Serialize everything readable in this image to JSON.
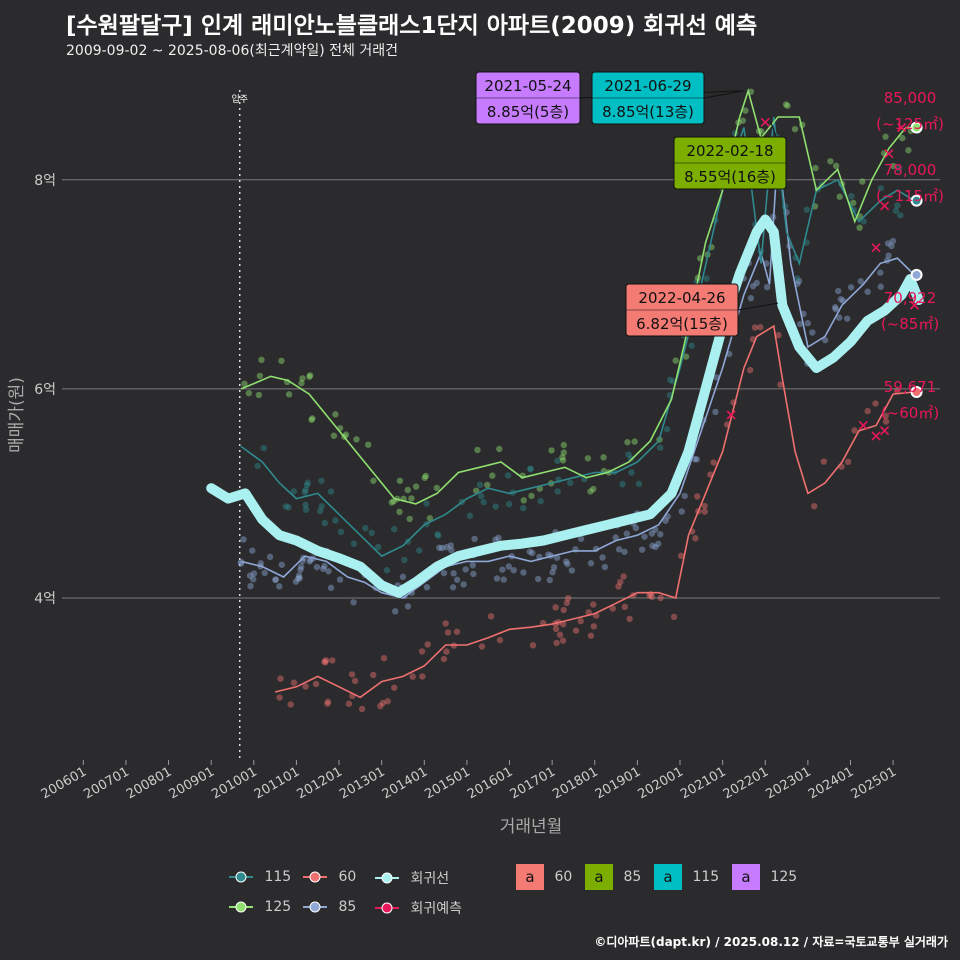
{
  "title": "[수원팔달구] 인계 래미안노블클래스1단지 아파트(2009) 회귀선 예측",
  "subtitle": "2009-09-02 ~ 2025-08-06(최근계약일) 전체 거래건",
  "footer": "©디아파트(dapt.kr) / 2025.08.12 / 자료=국토교통부 실거래가",
  "colors": {
    "bg": "#2b2b2d",
    "grid": "#7a7a7a",
    "s60": "#f07070",
    "s85": "#8fa8d8",
    "s115": "#2f8a8f",
    "s125": "#90e070",
    "reg": "#aaf0f0",
    "pred": "#e8185a",
    "lab60": "#f47a74",
    "lab85": "#7cae00",
    "lab115": "#00bfc4",
    "lab125": "#c77cff"
  },
  "chart_data": {
    "type": "line",
    "xlabel": "거래년월",
    "ylabel": "매매가(원)",
    "x_ticks": [
      "200601",
      "200701",
      "200801",
      "200901",
      "201001",
      "201101",
      "201201",
      "201301",
      "201401",
      "201501",
      "201601",
      "201701",
      "201801",
      "201901",
      "202001",
      "202101",
      "202201",
      "202301",
      "202401",
      "202501"
    ],
    "y_ticks": [
      {
        "v": 4,
        "label": "4억"
      },
      {
        "v": 6,
        "label": "6억"
      },
      {
        "v": 8,
        "label": "8억"
      }
    ],
    "xlim": [
      2005.5,
      2026.1
    ],
    "ylim": [
      2.45,
      9.05
    ],
    "move_in": {
      "x": 2009.67,
      "label": "입주"
    },
    "series": [
      {
        "name": "60",
        "key": "s60",
        "points": [
          [
            2010.5,
            3.1
          ],
          [
            2011.0,
            3.15
          ],
          [
            2011.5,
            3.25
          ],
          [
            2012.0,
            3.15
          ],
          [
            2012.5,
            3.05
          ],
          [
            2013.0,
            3.2
          ],
          [
            2013.5,
            3.25
          ],
          [
            2014.0,
            3.35
          ],
          [
            2014.5,
            3.55
          ],
          [
            2015.0,
            3.55
          ],
          [
            2015.5,
            3.62
          ],
          [
            2016.0,
            3.7
          ],
          [
            2016.5,
            3.72
          ],
          [
            2017.0,
            3.75
          ],
          [
            2017.5,
            3.8
          ],
          [
            2018.0,
            3.85
          ],
          [
            2018.5,
            3.95
          ],
          [
            2019.0,
            4.05
          ],
          [
            2019.5,
            4.05
          ],
          [
            2019.9,
            4.0
          ],
          [
            2020.2,
            4.6
          ],
          [
            2020.6,
            5.0
          ],
          [
            2021.0,
            5.4
          ],
          [
            2021.5,
            6.2
          ],
          [
            2021.8,
            6.5
          ],
          [
            2022.2,
            6.6
          ],
          [
            2022.4,
            6.1
          ],
          [
            2022.7,
            5.4
          ],
          [
            2023.0,
            5.0
          ],
          [
            2023.4,
            5.1
          ],
          [
            2023.8,
            5.3
          ],
          [
            2024.2,
            5.6
          ],
          [
            2024.6,
            5.65
          ],
          [
            2025.0,
            5.95
          ],
          [
            2025.5,
            5.97
          ]
        ]
      },
      {
        "name": "85",
        "key": "s85",
        "points": [
          [
            2009.7,
            4.35
          ],
          [
            2010.2,
            4.3
          ],
          [
            2010.7,
            4.2
          ],
          [
            2011.2,
            4.4
          ],
          [
            2011.7,
            4.35
          ],
          [
            2012.2,
            4.2
          ],
          [
            2012.6,
            4.15
          ],
          [
            2013.0,
            4.05
          ],
          [
            2013.5,
            4.0
          ],
          [
            2014.0,
            4.15
          ],
          [
            2014.5,
            4.3
          ],
          [
            2015.0,
            4.35
          ],
          [
            2015.5,
            4.35
          ],
          [
            2016.0,
            4.4
          ],
          [
            2016.5,
            4.35
          ],
          [
            2017.0,
            4.4
          ],
          [
            2017.5,
            4.45
          ],
          [
            2018.0,
            4.45
          ],
          [
            2018.5,
            4.55
          ],
          [
            2019.0,
            4.6
          ],
          [
            2019.5,
            4.7
          ],
          [
            2020.0,
            5.0
          ],
          [
            2020.5,
            5.6
          ],
          [
            2021.0,
            6.2
          ],
          [
            2021.5,
            6.9
          ],
          [
            2021.9,
            7.3
          ],
          [
            2022.1,
            7.0
          ],
          [
            2022.3,
            8.3
          ],
          [
            2022.6,
            7.2
          ],
          [
            2023.0,
            6.4
          ],
          [
            2023.4,
            6.5
          ],
          [
            2023.8,
            6.8
          ],
          [
            2024.3,
            7.0
          ],
          [
            2024.7,
            7.2
          ],
          [
            2025.1,
            7.25
          ],
          [
            2025.5,
            7.09
          ]
        ]
      },
      {
        "name": "115",
        "key": "s115",
        "points": [
          [
            2009.7,
            5.45
          ],
          [
            2010.2,
            5.3
          ],
          [
            2010.6,
            5.1
          ],
          [
            2011.0,
            4.95
          ],
          [
            2011.5,
            5.0
          ],
          [
            2012.0,
            4.8
          ],
          [
            2012.5,
            4.6
          ],
          [
            2013.0,
            4.4
          ],
          [
            2013.5,
            4.5
          ],
          [
            2014.0,
            4.7
          ],
          [
            2014.5,
            4.8
          ],
          [
            2015.0,
            4.95
          ],
          [
            2015.5,
            5.05
          ],
          [
            2016.0,
            5.0
          ],
          [
            2016.5,
            5.05
          ],
          [
            2017.0,
            5.1
          ],
          [
            2017.5,
            5.15
          ],
          [
            2018.0,
            5.2
          ],
          [
            2018.5,
            5.2
          ],
          [
            2019.0,
            5.3
          ],
          [
            2019.5,
            5.5
          ],
          [
            2020.0,
            6.2
          ],
          [
            2020.5,
            7.0
          ],
          [
            2021.0,
            7.9
          ],
          [
            2021.5,
            8.5
          ],
          [
            2021.9,
            7.2
          ],
          [
            2022.2,
            8.6
          ],
          [
            2022.5,
            7.5
          ],
          [
            2022.8,
            7.2
          ],
          [
            2023.2,
            7.9
          ],
          [
            2023.7,
            8.0
          ],
          [
            2024.2,
            7.6
          ],
          [
            2024.7,
            7.8
          ],
          [
            2025.1,
            7.9
          ],
          [
            2025.5,
            7.8
          ]
        ]
      },
      {
        "name": "125",
        "key": "s125",
        "points": [
          [
            2009.7,
            6.0
          ],
          [
            2010.0,
            6.05
          ],
          [
            2010.4,
            6.12
          ],
          [
            2010.8,
            6.08
          ],
          [
            2011.3,
            5.95
          ],
          [
            2011.8,
            5.7
          ],
          [
            2012.3,
            5.45
          ],
          [
            2012.8,
            5.2
          ],
          [
            2013.3,
            4.95
          ],
          [
            2013.8,
            4.9
          ],
          [
            2014.3,
            5.0
          ],
          [
            2014.8,
            5.2
          ],
          [
            2015.3,
            5.25
          ],
          [
            2015.8,
            5.3
          ],
          [
            2016.3,
            5.15
          ],
          [
            2016.8,
            5.2
          ],
          [
            2017.3,
            5.25
          ],
          [
            2017.8,
            5.15
          ],
          [
            2018.3,
            5.2
          ],
          [
            2018.8,
            5.3
          ],
          [
            2019.3,
            5.5
          ],
          [
            2019.8,
            5.9
          ],
          [
            2020.2,
            6.6
          ],
          [
            2020.6,
            7.4
          ],
          [
            2021.0,
            7.9
          ],
          [
            2021.4,
            8.6
          ],
          [
            2021.6,
            8.85
          ],
          [
            2021.9,
            8.4
          ],
          [
            2022.3,
            8.6
          ],
          [
            2022.8,
            8.6
          ],
          [
            2023.2,
            7.9
          ],
          [
            2023.7,
            8.1
          ],
          [
            2024.1,
            7.6
          ],
          [
            2024.5,
            8.0
          ],
          [
            2024.9,
            8.3
          ],
          [
            2025.3,
            8.5
          ],
          [
            2025.55,
            8.5
          ]
        ]
      },
      {
        "name": "회귀선",
        "key": "reg",
        "points": [
          [
            2009.0,
            5.05
          ],
          [
            2009.4,
            4.95
          ],
          [
            2009.8,
            5.0
          ],
          [
            2010.2,
            4.75
          ],
          [
            2010.6,
            4.6
          ],
          [
            2011.0,
            4.55
          ],
          [
            2011.5,
            4.45
          ],
          [
            2012.0,
            4.38
          ],
          [
            2012.5,
            4.3
          ],
          [
            2013.0,
            4.12
          ],
          [
            2013.4,
            4.05
          ],
          [
            2013.8,
            4.15
          ],
          [
            2014.3,
            4.3
          ],
          [
            2014.8,
            4.4
          ],
          [
            2015.3,
            4.45
          ],
          [
            2015.8,
            4.5
          ],
          [
            2016.3,
            4.52
          ],
          [
            2016.8,
            4.55
          ],
          [
            2017.3,
            4.6
          ],
          [
            2017.8,
            4.65
          ],
          [
            2018.3,
            4.7
          ],
          [
            2018.8,
            4.75
          ],
          [
            2019.3,
            4.8
          ],
          [
            2019.8,
            5.0
          ],
          [
            2020.2,
            5.4
          ],
          [
            2020.6,
            6.0
          ],
          [
            2021.0,
            6.6
          ],
          [
            2021.4,
            7.1
          ],
          [
            2021.8,
            7.5
          ],
          [
            2022.0,
            7.62
          ],
          [
            2022.2,
            7.5
          ],
          [
            2022.4,
            6.8
          ],
          [
            2022.8,
            6.4
          ],
          [
            2023.2,
            6.2
          ],
          [
            2023.6,
            6.3
          ],
          [
            2024.0,
            6.45
          ],
          [
            2024.4,
            6.65
          ],
          [
            2024.8,
            6.75
          ],
          [
            2025.2,
            6.9
          ],
          [
            2025.4,
            7.05
          ],
          [
            2025.6,
            6.85
          ]
        ]
      }
    ],
    "predictions": [
      {
        "label": "85,000",
        "sub": "(~125㎡)",
        "value": 8.5,
        "key": "s125"
      },
      {
        "label": "78,000",
        "sub": "(~115㎡)",
        "value": 7.8,
        "key": "s115"
      },
      {
        "label": "70,922",
        "sub": "(~85㎡)",
        "value": 7.09,
        "key": "s85"
      },
      {
        "label": "59,671",
        "sub": "(~60㎡)",
        "value": 5.97,
        "key": "s60"
      }
    ],
    "annotations": [
      {
        "date": "2021-05-24",
        "price": "8.85억(5층)",
        "key": "lab125",
        "x": 2021.4,
        "y": 8.85
      },
      {
        "date": "2021-06-29",
        "price": "8.85억(13층)",
        "key": "lab115",
        "x": 2021.5,
        "y": 8.85
      },
      {
        "date": "2022-02-18",
        "price": "8.55억(16층)",
        "key": "lab85",
        "x": 2022.13,
        "y": 8.55
      },
      {
        "date": "2022-04-26",
        "price": "6.82억(15층)",
        "key": "lab60",
        "x": 2022.3,
        "y": 6.82
      }
    ]
  },
  "legend": {
    "lines": [
      {
        "label": "115",
        "key": "s115"
      },
      {
        "label": "60",
        "key": "s60"
      },
      {
        "label": "회귀선",
        "key": "reg"
      },
      {
        "label": "125",
        "key": "s125"
      },
      {
        "label": "85",
        "key": "s85"
      },
      {
        "label": "회귀예측",
        "key": "pred"
      }
    ],
    "boxes": [
      {
        "glyph": "a",
        "label": "60",
        "key": "lab60"
      },
      {
        "glyph": "a",
        "label": "85",
        "key": "lab85"
      },
      {
        "glyph": "a",
        "label": "115",
        "key": "lab115"
      },
      {
        "glyph": "a",
        "label": "125",
        "key": "lab125"
      }
    ]
  }
}
